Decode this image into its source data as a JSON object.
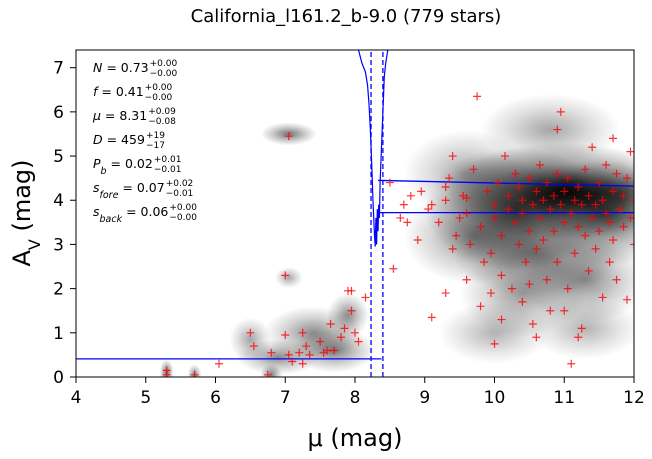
{
  "chart_data": {
    "type": "scatter",
    "title": "California_l161.2_b-9.0 (779 stars)",
    "xlabel": "μ (mag)",
    "ylabel": "A",
    "ylabel_sub": "V",
    "ylabel_unit": " (mag)",
    "xlim": [
      4,
      12
    ],
    "ylim": [
      0,
      7.4
    ],
    "xticks": [
      "4",
      "5",
      "6",
      "7",
      "8",
      "9",
      "10",
      "11",
      "12"
    ],
    "yticks": [
      "0",
      "1",
      "2",
      "3",
      "4",
      "5",
      "6",
      "7"
    ],
    "grid": false,
    "annotations": [
      {
        "lhs": "N = 0.73",
        "up": "+0.00",
        "lo": "−0.00"
      },
      {
        "lhs": "f = 0.41",
        "up": "+0.00",
        "lo": "−0.00"
      },
      {
        "lhs": "μ = 8.31",
        "up": "+0.09",
        "lo": "−0.08"
      },
      {
        "lhs": "D = 459",
        "up": "+19",
        "lo": "−17"
      },
      {
        "lhs": "P_b = 0.02",
        "up": "+0.01",
        "lo": "−0.01"
      },
      {
        "lhs": "s_fore = 0.07",
        "up": "+0.02",
        "lo": "−0.01"
      },
      {
        "lhs": "s_back = 0.06",
        "up": "+0.00",
        "lo": "−0.00"
      }
    ],
    "colors": {
      "points": "#ff0000",
      "model": "#0000ff",
      "density": "#000000"
    },
    "model": {
      "distance_mu": 8.31,
      "distance_lower": 8.23,
      "distance_upper": 8.4,
      "av_foreground": 0.41,
      "av_background_upper": [
        4.45,
        4.32
      ],
      "av_background_lower": [
        3.72,
        3.72
      ]
    },
    "density_blobs": [
      {
        "x": 11.0,
        "y": 4.2,
        "sx": 0.85,
        "sy": 0.55,
        "a": 0.95
      },
      {
        "x": 10.3,
        "y": 3.8,
        "sx": 0.65,
        "sy": 0.7,
        "a": 0.7
      },
      {
        "x": 11.6,
        "y": 3.7,
        "sx": 0.5,
        "sy": 0.6,
        "a": 0.7
      },
      {
        "x": 10.6,
        "y": 2.8,
        "sx": 0.6,
        "sy": 0.5,
        "a": 0.5
      },
      {
        "x": 11.3,
        "y": 2.2,
        "sx": 0.45,
        "sy": 0.5,
        "a": 0.45
      },
      {
        "x": 10.4,
        "y": 1.9,
        "sx": 0.45,
        "sy": 0.5,
        "a": 0.4
      },
      {
        "x": 9.7,
        "y": 3.2,
        "sx": 0.5,
        "sy": 0.55,
        "a": 0.45
      },
      {
        "x": 9.6,
        "y": 4.6,
        "sx": 0.45,
        "sy": 0.5,
        "a": 0.35
      },
      {
        "x": 10.8,
        "y": 5.6,
        "sx": 0.5,
        "sy": 0.4,
        "a": 0.35
      },
      {
        "x": 11.3,
        "y": 1.1,
        "sx": 0.4,
        "sy": 0.35,
        "a": 0.3
      },
      {
        "x": 10.0,
        "y": 1.0,
        "sx": 0.4,
        "sy": 0.35,
        "a": 0.3
      },
      {
        "x": 7.05,
        "y": 5.5,
        "sx": 0.2,
        "sy": 0.13,
        "a": 0.55
      },
      {
        "x": 7.4,
        "y": 1.0,
        "sx": 0.35,
        "sy": 0.3,
        "a": 0.45
      },
      {
        "x": 7.7,
        "y": 0.6,
        "sx": 0.3,
        "sy": 0.25,
        "a": 0.5
      },
      {
        "x": 7.9,
        "y": 1.4,
        "sx": 0.15,
        "sy": 0.25,
        "a": 0.45
      },
      {
        "x": 6.9,
        "y": 0.45,
        "sx": 0.3,
        "sy": 0.2,
        "a": 0.45
      },
      {
        "x": 6.5,
        "y": 0.85,
        "sx": 0.15,
        "sy": 0.25,
        "a": 0.35
      },
      {
        "x": 5.3,
        "y": 0.1,
        "sx": 0.05,
        "sy": 0.15,
        "a": 0.6
      },
      {
        "x": 5.7,
        "y": 0.05,
        "sx": 0.05,
        "sy": 0.12,
        "a": 0.5
      },
      {
        "x": 6.8,
        "y": 0.05,
        "sx": 0.08,
        "sy": 0.12,
        "a": 0.5
      },
      {
        "x": 7.05,
        "y": 2.25,
        "sx": 0.1,
        "sy": 0.12,
        "a": 0.35
      }
    ],
    "points": [
      [
        5.3,
        0.15
      ],
      [
        5.3,
        0.05
      ],
      [
        5.7,
        0.05
      ],
      [
        6.05,
        0.3
      ],
      [
        6.5,
        1.0
      ],
      [
        6.55,
        0.7
      ],
      [
        6.75,
        0.05
      ],
      [
        6.8,
        0.55
      ],
      [
        7.0,
        0.95
      ],
      [
        7.05,
        0.5
      ],
      [
        7.1,
        0.35
      ],
      [
        7.2,
        0.55
      ],
      [
        7.25,
        1.0
      ],
      [
        7.3,
        0.7
      ],
      [
        7.35,
        0.5
      ],
      [
        7.5,
        0.8
      ],
      [
        7.55,
        0.55
      ],
      [
        7.6,
        0.6
      ],
      [
        7.65,
        1.2
      ],
      [
        7.7,
        0.6
      ],
      [
        7.8,
        0.9
      ],
      [
        7.85,
        1.1
      ],
      [
        7.9,
        1.95
      ],
      [
        7.95,
        1.5
      ],
      [
        8.0,
        1.0
      ],
      [
        8.05,
        0.8
      ],
      [
        7.95,
        1.95
      ],
      [
        7.25,
        0.3
      ],
      [
        8.15,
        1.8
      ],
      [
        7.0,
        2.3
      ],
      [
        7.05,
        5.45
      ],
      [
        8.5,
        4.4
      ],
      [
        8.65,
        3.6
      ],
      [
        8.7,
        3.9
      ],
      [
        8.75,
        3.5
      ],
      [
        8.8,
        4.1
      ],
      [
        8.55,
        2.45
      ],
      [
        8.9,
        3.1
      ],
      [
        8.95,
        4.2
      ],
      [
        9.05,
        3.8
      ],
      [
        9.1,
        1.35
      ],
      [
        9.1,
        3.9
      ],
      [
        9.2,
        3.5
      ],
      [
        9.3,
        4.0
      ],
      [
        9.3,
        4.3
      ],
      [
        9.35,
        4.5
      ],
      [
        9.4,
        2.9
      ],
      [
        9.45,
        3.2
      ],
      [
        9.5,
        3.6
      ],
      [
        9.55,
        4.1
      ],
      [
        9.6,
        2.2
      ],
      [
        9.6,
        3.7
      ],
      [
        9.65,
        3.0
      ],
      [
        9.7,
        4.7
      ],
      [
        9.75,
        6.35
      ],
      [
        9.8,
        3.4
      ],
      [
        9.85,
        2.6
      ],
      [
        9.9,
        4.2
      ],
      [
        9.95,
        1.9
      ],
      [
        10.0,
        0.75
      ],
      [
        10.0,
        3.6
      ],
      [
        10.0,
        3.9
      ],
      [
        10.05,
        4.4
      ],
      [
        10.1,
        2.3
      ],
      [
        10.1,
        3.2
      ],
      [
        10.15,
        5.0
      ],
      [
        10.2,
        3.8
      ],
      [
        10.2,
        4.1
      ],
      [
        10.25,
        2.0
      ],
      [
        10.3,
        3.5
      ],
      [
        10.3,
        4.6
      ],
      [
        10.35,
        3.0
      ],
      [
        10.35,
        4.3
      ],
      [
        10.4,
        1.7
      ],
      [
        10.4,
        3.7
      ],
      [
        10.4,
        4.0
      ],
      [
        10.45,
        2.6
      ],
      [
        10.5,
        3.3
      ],
      [
        10.5,
        4.5
      ],
      [
        10.55,
        1.2
      ],
      [
        10.55,
        3.9
      ],
      [
        10.6,
        4.2
      ],
      [
        10.6,
        2.9
      ],
      [
        10.65,
        3.6
      ],
      [
        10.65,
        4.8
      ],
      [
        10.7,
        3.1
      ],
      [
        10.7,
        4.0
      ],
      [
        10.75,
        2.2
      ],
      [
        10.75,
        4.4
      ],
      [
        10.8,
        3.8
      ],
      [
        10.8,
        1.5
      ],
      [
        10.85,
        4.1
      ],
      [
        10.85,
        3.3
      ],
      [
        10.9,
        2.6
      ],
      [
        10.9,
        4.6
      ],
      [
        10.95,
        3.9
      ],
      [
        10.95,
        6.0
      ],
      [
        11.0,
        4.2
      ],
      [
        11.0,
        3.5
      ],
      [
        11.05,
        2.0
      ],
      [
        11.05,
        4.5
      ],
      [
        11.1,
        3.7
      ],
      [
        11.1,
        0.3
      ],
      [
        11.15,
        4.0
      ],
      [
        11.15,
        2.8
      ],
      [
        11.2,
        3.4
      ],
      [
        11.2,
        4.3
      ],
      [
        11.25,
        1.1
      ],
      [
        11.25,
        3.9
      ],
      [
        11.3,
        4.7
      ],
      [
        11.3,
        3.2
      ],
      [
        11.35,
        2.4
      ],
      [
        11.35,
        4.1
      ],
      [
        11.4,
        3.6
      ],
      [
        11.4,
        5.2
      ],
      [
        11.45,
        3.9
      ],
      [
        11.45,
        2.9
      ],
      [
        11.5,
        4.4
      ],
      [
        11.5,
        3.3
      ],
      [
        11.55,
        1.8
      ],
      [
        11.55,
        4.0
      ],
      [
        11.6,
        3.7
      ],
      [
        11.6,
        4.8
      ],
      [
        11.65,
        2.6
      ],
      [
        11.65,
        3.5
      ],
      [
        11.7,
        4.2
      ],
      [
        11.7,
        3.1
      ],
      [
        11.75,
        4.6
      ],
      [
        11.75,
        2.2
      ],
      [
        11.8,
        3.8
      ],
      [
        11.85,
        4.1
      ],
      [
        11.85,
        3.4
      ],
      [
        11.9,
        1.75
      ],
      [
        11.9,
        4.5
      ],
      [
        11.95,
        3.6
      ],
      [
        11.95,
        5.1
      ],
      [
        12.0,
        3.0
      ],
      [
        12.0,
        4.0
      ],
      [
        10.1,
        1.3
      ],
      [
        10.6,
        0.9
      ],
      [
        9.8,
        1.6
      ],
      [
        9.95,
        2.8
      ],
      [
        10.5,
        2.1
      ],
      [
        11.0,
        1.5
      ],
      [
        11.2,
        0.9
      ],
      [
        9.6,
        4.05
      ],
      [
        9.3,
        1.9
      ],
      [
        9.4,
        5.0
      ],
      [
        10.9,
        5.6
      ],
      [
        11.7,
        5.4
      ]
    ],
    "density_points": [
      [
        10.6,
        4.0
      ],
      [
        10.7,
        4.2
      ],
      [
        10.8,
        4.1
      ],
      [
        10.9,
        4.3
      ],
      [
        11.0,
        3.9
      ],
      [
        11.1,
        4.1
      ],
      [
        11.2,
        4.0
      ],
      [
        11.3,
        4.2
      ],
      [
        11.4,
        4.0
      ],
      [
        11.5,
        4.1
      ],
      [
        11.6,
        4.3
      ],
      [
        11.7,
        4.0
      ],
      [
        11.8,
        4.2
      ],
      [
        11.9,
        4.1
      ],
      [
        10.75,
        3.95
      ],
      [
        10.95,
        4.25
      ],
      [
        11.15,
        4.35
      ],
      [
        11.35,
        3.95
      ],
      [
        11.55,
        4.25
      ],
      [
        11.75,
        4.05
      ],
      [
        10.65,
        4.3
      ],
      [
        10.85,
        3.9
      ],
      [
        11.05,
        4.15
      ],
      [
        11.25,
        4.05
      ],
      [
        11.45,
        4.3
      ],
      [
        11.65,
        4.15
      ],
      [
        11.85,
        3.95
      ],
      [
        10.55,
        4.15
      ],
      [
        11.95,
        4.25
      ],
      [
        10.45,
        4.0
      ],
      [
        10.7,
        3.85
      ],
      [
        10.9,
        4.05
      ],
      [
        11.1,
        3.95
      ],
      [
        11.3,
        4.1
      ],
      [
        11.5,
        3.9
      ],
      [
        11.7,
        4.3
      ],
      [
        11.9,
        4.35
      ],
      [
        11.0,
        4.4
      ],
      [
        11.2,
        4.25
      ],
      [
        11.4,
        4.15
      ]
    ],
    "model_curve": [
      [
        8.05,
        7.4
      ],
      [
        8.1,
        7.1
      ],
      [
        8.15,
        6.9
      ],
      [
        8.18,
        6.6
      ],
      [
        8.2,
        6.2
      ],
      [
        8.22,
        5.6
      ],
      [
        8.24,
        4.8
      ],
      [
        8.26,
        3.9
      ],
      [
        8.28,
        3.2
      ],
      [
        8.29,
        2.95
      ],
      [
        8.3,
        3.6
      ],
      [
        8.31,
        3.0
      ],
      [
        8.32,
        3.8
      ],
      [
        8.33,
        3.3
      ],
      [
        8.34,
        3.9
      ],
      [
        8.35,
        3.6
      ],
      [
        8.36,
        4.4
      ],
      [
        8.38,
        5.2
      ],
      [
        8.4,
        6.0
      ],
      [
        8.42,
        6.8
      ],
      [
        8.44,
        7.1
      ],
      [
        8.46,
        7.3
      ],
      [
        8.47,
        7.4
      ]
    ]
  }
}
